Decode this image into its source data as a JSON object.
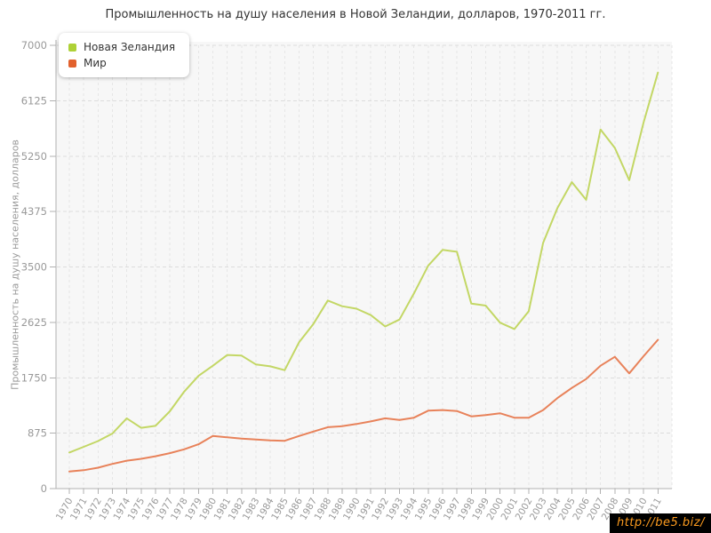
{
  "chart_data": {
    "type": "line",
    "title": "Промышленность на душу населения в Новой Зеландии, долларов, 1970-2011 гг.",
    "xlabel": "",
    "ylabel": "Промышленность на душу населения, долларов",
    "ylim": [
      0,
      7000
    ],
    "y_ticks": [
      0,
      875,
      1750,
      2625,
      3500,
      4375,
      5250,
      6125,
      7000
    ],
    "grid": true,
    "legend_position": "top-left",
    "categories": [
      1970,
      1971,
      1972,
      1973,
      1974,
      1975,
      1976,
      1977,
      1978,
      1979,
      1980,
      1981,
      1982,
      1983,
      1984,
      1985,
      1986,
      1987,
      1988,
      1989,
      1990,
      1991,
      1992,
      1993,
      1994,
      1995,
      1996,
      1997,
      1998,
      1999,
      2000,
      2001,
      2002,
      2003,
      2004,
      2005,
      2006,
      2007,
      2008,
      2009,
      2010,
      2011
    ],
    "series": [
      {
        "name": "Новая Зеландия",
        "color": "#aed136",
        "line_color": "#c3d765",
        "values": [
          570,
          660,
          750,
          870,
          1110,
          960,
          990,
          1220,
          1530,
          1780,
          1940,
          2110,
          2100,
          1960,
          1930,
          1870,
          2310,
          2600,
          2970,
          2880,
          2840,
          2740,
          2560,
          2670,
          3080,
          3520,
          3770,
          3740,
          2920,
          2890,
          2620,
          2520,
          2800,
          3880,
          4430,
          4840,
          4560,
          5670,
          5380,
          4870,
          5780,
          6570
        ]
      },
      {
        "name": "Мир",
        "color": "#e2612d",
        "line_color": "#e8825a",
        "values": [
          270,
          290,
          330,
          390,
          440,
          470,
          510,
          560,
          620,
          700,
          830,
          810,
          790,
          775,
          760,
          755,
          830,
          900,
          970,
          985,
          1020,
          1060,
          1110,
          1085,
          1120,
          1230,
          1240,
          1225,
          1140,
          1160,
          1190,
          1120,
          1120,
          1240,
          1430,
          1590,
          1730,
          1940,
          2080,
          1820,
          2090,
          2350
        ]
      }
    ]
  },
  "watermark": {
    "text": "http://be5.biz/"
  },
  "style": {
    "plot_bg": "#f7f7f7",
    "axis_color": "#b0b0b0",
    "h_grid_color": "#dcdcdc",
    "v_grid_color": "#e6e6e6",
    "tick_label_color": "#999999"
  }
}
